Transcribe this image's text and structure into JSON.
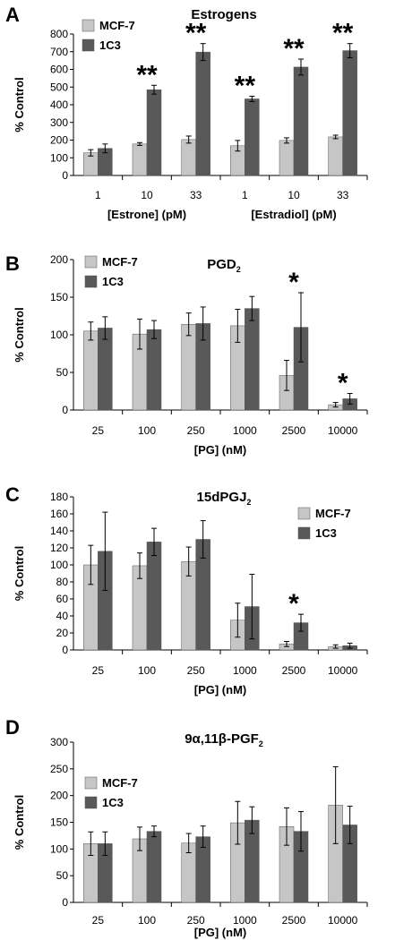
{
  "chart_data": [
    {
      "panel": "A",
      "type": "bar",
      "title": "Estrogens",
      "title_sub": "",
      "xlabel": "",
      "group_labels": [
        "[Estrone] (pM)",
        "[Estradiol] (pM)"
      ],
      "ylabel": "% Control",
      "ylim": [
        0,
        800
      ],
      "yticks": [
        0,
        100,
        200,
        300,
        400,
        500,
        600,
        700,
        800
      ],
      "categories": [
        "1",
        "10",
        "33",
        "1",
        "10",
        "33"
      ],
      "series": [
        {
          "name": "MCF-7",
          "color": "#c6c6c6",
          "values": [
            128,
            178,
            203,
            168,
            198,
            218
          ],
          "errors": [
            18,
            8,
            20,
            30,
            15,
            10
          ]
        },
        {
          "name": "1C3",
          "color": "#595959",
          "values": [
            153,
            485,
            698,
            433,
            613,
            706
          ],
          "errors": [
            25,
            25,
            48,
            15,
            45,
            40
          ]
        }
      ],
      "annotations": [
        "",
        "**",
        "**",
        "**",
        "**",
        "**"
      ],
      "legend": "top-left"
    },
    {
      "panel": "B",
      "type": "bar",
      "title": "PGD",
      "title_sub": "2",
      "xlabel": "[PG] (nM)",
      "group_labels": [],
      "ylabel": "% Control",
      "ylim": [
        0,
        200
      ],
      "yticks": [
        0,
        50,
        100,
        150,
        200
      ],
      "categories": [
        "25",
        "100",
        "250",
        "1000",
        "2500",
        "10000"
      ],
      "series": [
        {
          "name": "MCF-7",
          "color": "#c6c6c6",
          "values": [
            105,
            101,
            114,
            112,
            46,
            7
          ],
          "errors": [
            12,
            20,
            15,
            22,
            20,
            3
          ]
        },
        {
          "name": "1C3",
          "color": "#595959",
          "values": [
            109,
            107,
            115,
            135,
            110,
            15
          ],
          "errors": [
            15,
            12,
            22,
            16,
            46,
            7
          ]
        }
      ],
      "annotations": [
        "",
        "",
        "",
        "",
        "*",
        "*"
      ],
      "legend": "top-left"
    },
    {
      "panel": "C",
      "type": "bar",
      "title": "15dPGJ",
      "title_sub": "2",
      "xlabel": "[PG] (nM)",
      "group_labels": [],
      "ylabel": "% Control",
      "ylim": [
        0,
        180
      ],
      "yticks": [
        0,
        20,
        40,
        60,
        80,
        100,
        120,
        140,
        160,
        180
      ],
      "categories": [
        "25",
        "100",
        "250",
        "1000",
        "2500",
        "10000"
      ],
      "series": [
        {
          "name": "MCF-7",
          "color": "#c6c6c6",
          "values": [
            100,
            99,
            104,
            35,
            7,
            4
          ],
          "errors": [
            23,
            15,
            17,
            20,
            3,
            2
          ]
        },
        {
          "name": "1C3",
          "color": "#595959",
          "values": [
            116,
            127,
            130,
            51,
            32,
            5
          ],
          "errors": [
            46,
            16,
            22,
            38,
            10,
            3
          ]
        }
      ],
      "annotations": [
        "",
        "",
        "",
        "",
        "*",
        ""
      ],
      "legend": "top-right"
    },
    {
      "panel": "D",
      "type": "bar",
      "title": "9α,11β-PGF",
      "title_sub": "2",
      "xlabel": "[PG] (nM)",
      "group_labels": [],
      "ylabel": "% Control",
      "ylim": [
        0,
        300
      ],
      "yticks": [
        0,
        50,
        100,
        150,
        200,
        250,
        300
      ],
      "categories": [
        "25",
        "100",
        "250",
        "1000",
        "2500",
        "10000"
      ],
      "series": [
        {
          "name": "MCF-7",
          "color": "#c6c6c6",
          "values": [
            110,
            119,
            111,
            149,
            142,
            182
          ],
          "errors": [
            22,
            22,
            18,
            40,
            35,
            72
          ]
        },
        {
          "name": "1C3",
          "color": "#595959",
          "values": [
            110,
            133,
            123,
            154,
            133,
            145
          ],
          "errors": [
            22,
            10,
            20,
            25,
            37,
            35
          ]
        }
      ],
      "annotations": [
        "",
        "",
        "",
        "",
        "",
        ""
      ],
      "legend": "top-left"
    }
  ]
}
